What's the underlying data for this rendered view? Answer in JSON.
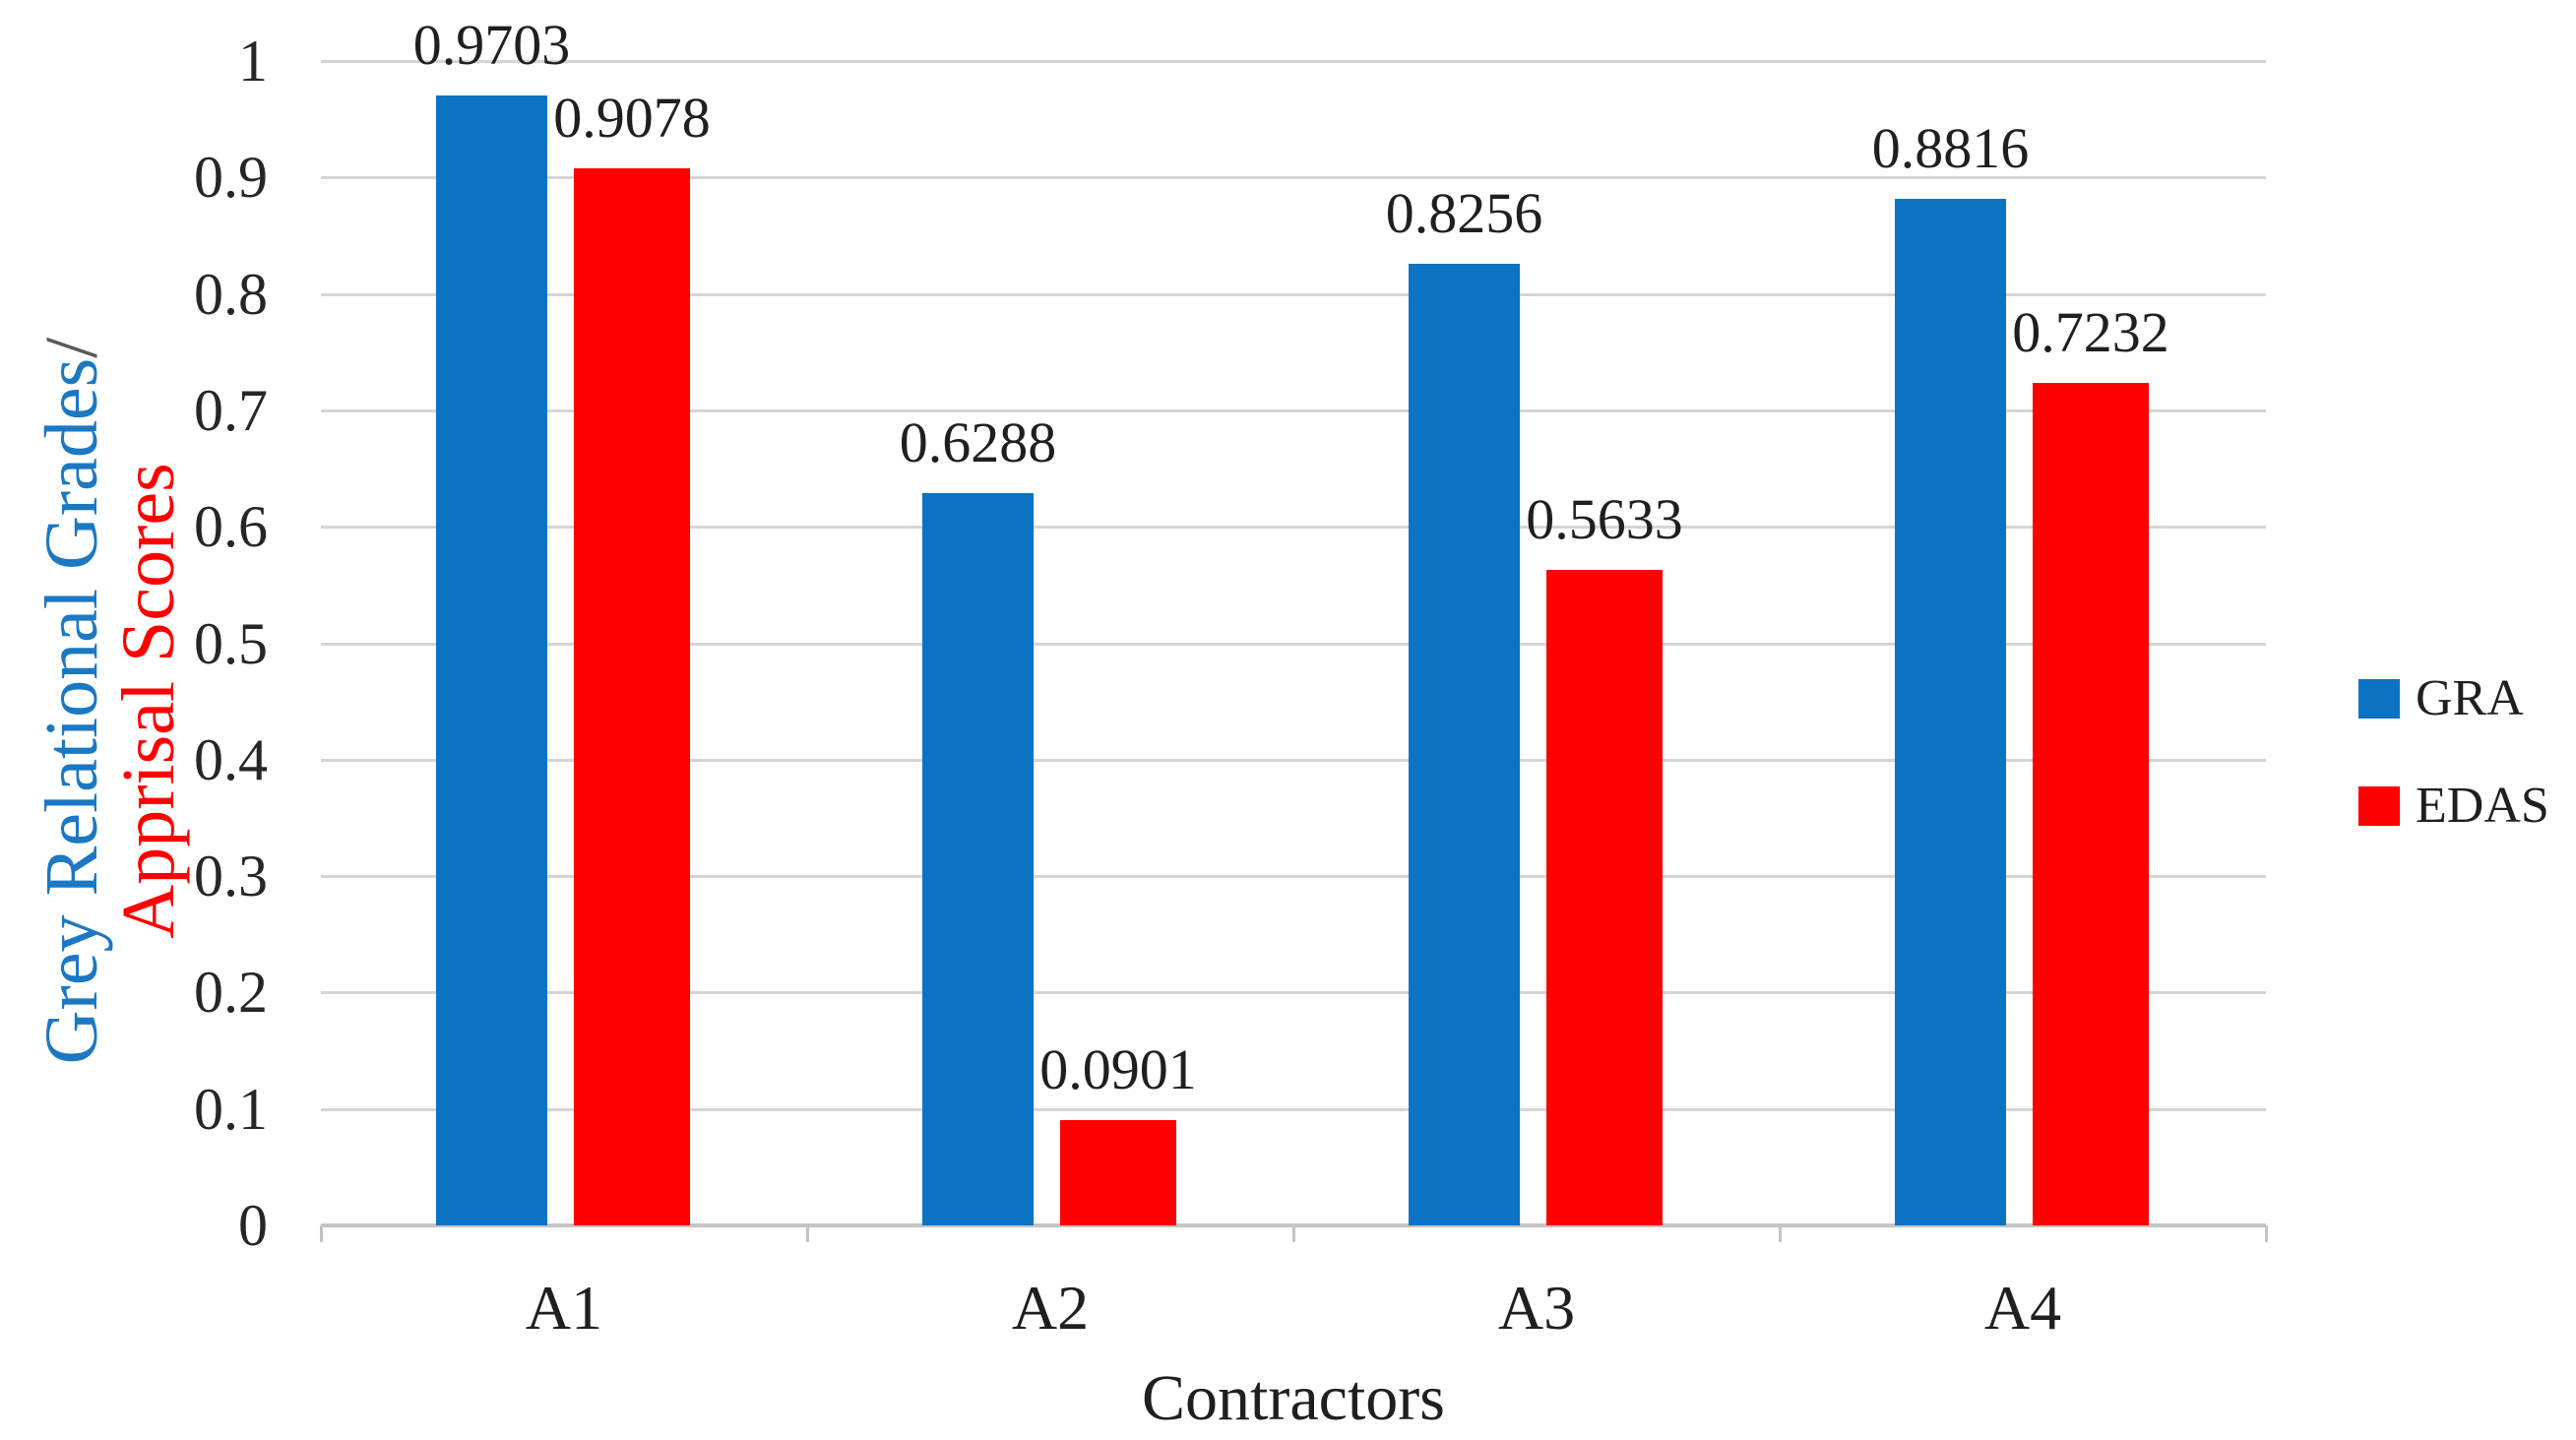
{
  "chart_data": {
    "type": "bar",
    "title": "",
    "categories": [
      "A1",
      "A2",
      "A3",
      "A4"
    ],
    "series": [
      {
        "name": "GRA",
        "color": "#0b74c2",
        "values": [
          0.9703,
          0.6288,
          0.8256,
          0.8816
        ]
      },
      {
        "name": "EDAS",
        "color": "#ff0000",
        "values": [
          0.9078,
          0.0901,
          0.5633,
          0.7232
        ]
      }
    ],
    "data_labels": [
      [
        "0.9703",
        "0.6288",
        "0.8256",
        "0.8816"
      ],
      [
        "0.9078",
        "0.0901",
        "0.5633",
        "0.7232"
      ]
    ],
    "xlabel": "Contractors",
    "ylabel_line1": "Grey Relational Grades",
    "ylabel_slash": "/",
    "ylabel_line2": "Apprisal Scores",
    "y_ticks": [
      "1",
      "0.9",
      "0.8",
      "0.7",
      "0.6",
      "0.5",
      "0.4",
      "0.3",
      "0.2",
      "0.1",
      "0"
    ],
    "ylim": [
      0,
      1
    ],
    "grid": "horizontal-major",
    "legend_position": "right",
    "colors": {
      "gra_blue": "#0b74c2",
      "edas_red": "#ff0000",
      "slash_gray": "#58595b",
      "gridline": "#d5d5d5",
      "axis": "#c4c4c4",
      "label_text": "#1f1f1f"
    }
  }
}
